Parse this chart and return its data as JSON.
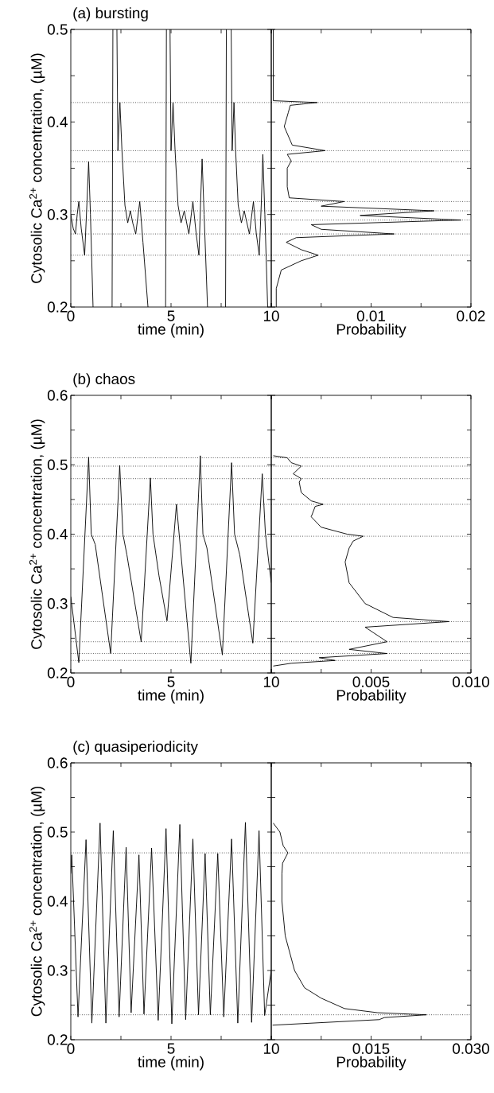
{
  "chart_data": [
    {
      "type": "line",
      "title": "(a) bursting",
      "xlabel": "time  (min)",
      "ylabel": "Cytosolic Ca$^{2+}$ concentration,  (µM)",
      "xlim": [
        0,
        10
      ],
      "ylim": [
        0.2,
        0.5
      ],
      "xticks": [
        0,
        {
          "value": 2.5,
          "label": null
        },
        5,
        {
          "value": 7.5,
          "label": null
        },
        10
      ],
      "yticks": [
        0.2,
        {
          "value": 0.25,
          "label": null
        },
        0.3,
        {
          "value": 0.35,
          "label": null
        },
        0.4,
        {
          "value": 0.45,
          "label": null
        },
        0.5
      ],
      "series": [
        {
          "color": "#000000",
          "x": [
            0,
            0.12,
            0.23,
            0.32,
            0.4,
            0.52,
            0.69,
            0.8,
            0.89,
            0.98,
            1.11,
            1.5,
            2.06,
            2.1,
            2.2,
            2.3,
            2.35,
            2.45,
            2.55,
            2.7,
            2.84,
            2.97,
            3.1,
            3.24,
            3.44,
            3.6,
            3.85,
            4.3,
            4.73,
            4.77,
            4.85,
            4.95,
            5.0,
            5.1,
            5.2,
            5.35,
            5.5,
            5.66,
            5.89,
            6.09,
            6.25,
            6.39,
            6.47,
            6.55,
            6.65,
            6.82,
            7.2,
            7.72,
            7.76,
            7.9,
            8.0,
            8.05,
            8.14,
            8.22,
            8.35,
            8.51,
            8.65,
            8.91,
            9.11,
            9.25,
            9.4,
            9.5,
            9.58,
            9.68,
            9.82
          ],
          "values": [
            0.3,
            0.285,
            0.279,
            0.3,
            0.314,
            0.285,
            0.256,
            0.31,
            0.357,
            0.3,
            0.2,
            null,
            0.2,
            0.5,
            null,
            0.5,
            0.369,
            0.421,
            0.37,
            0.31,
            0.291,
            0.304,
            0.29,
            0.279,
            0.314,
            0.27,
            0.2,
            null,
            0.2,
            0.5,
            null,
            0.5,
            0.369,
            0.421,
            0.37,
            0.31,
            0.291,
            0.304,
            0.279,
            0.314,
            0.28,
            0.256,
            0.31,
            0.36,
            0.3,
            0.2,
            null,
            0.2,
            0.5,
            null,
            0.5,
            0.369,
            0.421,
            0.37,
            0.31,
            0.291,
            0.304,
            0.279,
            0.314,
            0.28,
            0.256,
            0.31,
            0.365,
            0.3,
            0.2
          ]
        }
      ],
      "ref_lines": [
        {
          "axis": "y",
          "value": 0.421,
          "line_style": "dotted"
        },
        {
          "axis": "y",
          "value": 0.369,
          "line_style": "dotted"
        },
        {
          "axis": "y",
          "value": 0.357,
          "line_style": "dotted"
        },
        {
          "axis": "y",
          "value": 0.314,
          "line_style": "dotted"
        },
        {
          "axis": "y",
          "value": 0.304,
          "line_style": "dotted"
        },
        {
          "axis": "y",
          "value": 0.294,
          "line_style": "dotted"
        },
        {
          "axis": "y",
          "value": 0.279,
          "line_style": "dotted"
        },
        {
          "axis": "y",
          "value": 0.256,
          "line_style": "dotted"
        }
      ]
    },
    {
      "type": "line",
      "xlabel": "Probability",
      "xlim": [
        0,
        0.02
      ],
      "ylim": [
        0.2,
        0.5
      ],
      "tick_labels": "x",
      "xticks": [
        {
          "value": 0,
          "label": null
        },
        {
          "value": 0.005,
          "label": null
        },
        0.01,
        {
          "value": 0.015,
          "label": null
        },
        0.02
      ],
      "yticks": [
        0.2,
        0.25,
        0.3,
        0.35,
        0.4,
        0.45,
        0.5
      ],
      "series": [
        {
          "color": "#000000",
          "x": [
            0.0005,
            0.0005,
            0.001,
            0.003,
            0.0047,
            0.003,
            0.0015,
            0.0025,
            0.0123,
            0.005,
            0.004,
            0.019,
            0.0089,
            0.0163,
            0.005,
            0.0073,
            0.0018,
            0.0016,
            0.0016,
            0.002,
            0.0016,
            0.0054,
            0.0021,
            0.0013,
            0.0017,
            0.0019,
            0.0046,
            0.0002,
            0.0002
          ],
          "values": [
            0.2,
            0.22,
            0.24,
            0.25,
            0.256,
            0.262,
            0.27,
            0.275,
            0.279,
            0.284,
            0.289,
            0.294,
            0.299,
            0.304,
            0.309,
            0.314,
            0.318,
            0.33,
            0.35,
            0.358,
            0.365,
            0.369,
            0.375,
            0.395,
            0.41,
            0.418,
            0.421,
            0.423,
            0.5
          ]
        }
      ],
      "ref_lines": [
        {
          "axis": "y",
          "value": 0.421,
          "line_style": "dotted"
        },
        {
          "axis": "y",
          "value": 0.369,
          "line_style": "dotted"
        },
        {
          "axis": "y",
          "value": 0.357,
          "line_style": "dotted"
        },
        {
          "axis": "y",
          "value": 0.314,
          "line_style": "dotted"
        },
        {
          "axis": "y",
          "value": 0.304,
          "line_style": "dotted"
        },
        {
          "axis": "y",
          "value": 0.294,
          "line_style": "dotted"
        },
        {
          "axis": "y",
          "value": 0.279,
          "line_style": "dotted"
        },
        {
          "axis": "y",
          "value": 0.256,
          "line_style": "dotted"
        }
      ]
    },
    {
      "type": "line",
      "title": "(b) chaos",
      "xlabel": "time  (min)",
      "ylabel": "Cytosolic Ca$^{2+}$ concentration,  (µM)",
      "xlim": [
        0,
        10
      ],
      "ylim": [
        0.2,
        0.6
      ],
      "xticks": [
        0,
        {
          "value": 2.5,
          "label": null
        },
        5,
        {
          "value": 7.5,
          "label": null
        },
        10
      ],
      "yticks": [
        0.2,
        {
          "value": 0.25,
          "label": null
        },
        0.3,
        {
          "value": 0.35,
          "label": null
        },
        0.4,
        {
          "value": 0.45,
          "label": null
        },
        0.5,
        {
          "value": 0.55,
          "label": null
        },
        0.6
      ],
      "series": [
        {
          "color": "#000000",
          "x": [
            0,
            0.4,
            0.89,
            1.02,
            1.22,
            1.99,
            2.44,
            2.6,
            2.8,
            3.51,
            3.97,
            4.1,
            4.4,
            4.8,
            5.27,
            5.99,
            6.46,
            6.59,
            6.79,
            7.56,
            8.02,
            8.17,
            8.43,
            9.08,
            9.55,
            9.71,
            10
          ],
          "values": [
            0.31,
            0.215,
            0.511,
            0.4,
            0.385,
            0.228,
            0.499,
            0.4,
            0.37,
            0.245,
            0.481,
            0.4,
            0.34,
            0.275,
            0.443,
            0.214,
            0.513,
            0.4,
            0.38,
            0.226,
            0.503,
            0.4,
            0.37,
            0.243,
            0.487,
            0.4,
            0.33
          ]
        }
      ],
      "ref_lines": [
        {
          "axis": "y",
          "value": 0.51,
          "line_style": "dotted"
        },
        {
          "axis": "y",
          "value": 0.498,
          "line_style": "dotted"
        },
        {
          "axis": "y",
          "value": 0.48,
          "line_style": "dotted"
        },
        {
          "axis": "y",
          "value": 0.443,
          "line_style": "dotted"
        },
        {
          "axis": "y",
          "value": 0.397,
          "line_style": "dotted"
        },
        {
          "axis": "y",
          "value": 0.274,
          "line_style": "dotted"
        },
        {
          "axis": "y",
          "value": 0.245,
          "line_style": "dotted"
        },
        {
          "axis": "y",
          "value": 0.228,
          "line_style": "dotted"
        },
        {
          "axis": "y",
          "value": 0.218,
          "line_style": "dotted"
        }
      ]
    },
    {
      "type": "line",
      "xlabel": "Probability",
      "xlim": [
        0,
        0.01
      ],
      "ylim": [
        0.2,
        0.6
      ],
      "tick_labels": "x",
      "xticks": [
        {
          "value": 0,
          "label": null
        },
        {
          "value": 0.0025,
          "label": null
        },
        0.005,
        {
          "value": 0.0075,
          "label": null
        },
        {
          "value": 0.01,
          "label": "0.010"
        }
      ],
      "yticks": [
        0.2,
        0.25,
        0.3,
        0.35,
        0.4,
        0.45,
        0.5,
        0.55,
        0.6
      ],
      "series": [
        {
          "color": "#000000",
          "x": [
            0.0001,
            0.001,
            0.0032,
            0.0024,
            0.0058,
            0.0039,
            0.0058,
            0.0047,
            0.0089,
            0.0061,
            0.0047,
            0.0039,
            0.0037,
            0.0039,
            0.0041,
            0.0046,
            0.0038,
            0.0025,
            0.002,
            0.0022,
            0.0026,
            0.002,
            0.0015,
            0.0014,
            0.0015,
            0.0011,
            0.0015,
            0.001,
            0.0008,
            0.0001
          ],
          "values": [
            0.21,
            0.214,
            0.218,
            0.222,
            0.228,
            0.234,
            0.245,
            0.266,
            0.274,
            0.28,
            0.3,
            0.33,
            0.36,
            0.38,
            0.39,
            0.397,
            0.4,
            0.41,
            0.425,
            0.44,
            0.443,
            0.448,
            0.46,
            0.475,
            0.48,
            0.487,
            0.498,
            0.503,
            0.51,
            0.513
          ]
        }
      ],
      "ref_lines": [
        {
          "axis": "y",
          "value": 0.51,
          "line_style": "dotted"
        },
        {
          "axis": "y",
          "value": 0.498,
          "line_style": "dotted"
        },
        {
          "axis": "y",
          "value": 0.48,
          "line_style": "dotted"
        },
        {
          "axis": "y",
          "value": 0.443,
          "line_style": "dotted"
        },
        {
          "axis": "y",
          "value": 0.397,
          "line_style": "dotted"
        },
        {
          "axis": "y",
          "value": 0.274,
          "line_style": "dotted"
        },
        {
          "axis": "y",
          "value": 0.245,
          "line_style": "dotted"
        },
        {
          "axis": "y",
          "value": 0.228,
          "line_style": "dotted"
        },
        {
          "axis": "y",
          "value": 0.218,
          "line_style": "dotted"
        }
      ]
    },
    {
      "type": "line",
      "title": "(c) quasiperiodicity",
      "xlabel": "time  (min)",
      "ylabel": "Cytosolic Ca$^{2+}$ concentration,  (µM)",
      "xlim": [
        0,
        10
      ],
      "ylim": [
        0.2,
        0.6
      ],
      "xticks": [
        0,
        {
          "value": 2.5,
          "label": null
        },
        5,
        {
          "value": 7.5,
          "label": null
        },
        10
      ],
      "yticks": [
        0.2,
        {
          "value": 0.25,
          "label": null
        },
        0.3,
        {
          "value": 0.35,
          "label": null
        },
        0.4,
        {
          "value": 0.45,
          "label": null
        },
        0.5,
        {
          "value": 0.55,
          "label": null
        },
        0.6
      ],
      "series": [
        {
          "color": "#000000",
          "x": [
            0,
            0.05,
            0.36,
            0.76,
            1.05,
            1.46,
            1.75,
            2.12,
            2.41,
            2.76,
            3.01,
            3.4,
            3.65,
            4.03,
            4.36,
            4.75,
            5.04,
            5.44,
            5.73,
            6.09,
            6.37,
            6.7,
            6.96,
            7.33,
            7.63,
            8.02,
            8.33,
            8.71,
            9.02,
            9.39,
            9.67,
            10
          ],
          "values": [
            0.44,
            0.467,
            0.233,
            0.489,
            0.224,
            0.513,
            0.224,
            0.502,
            0.233,
            0.478,
            0.239,
            0.467,
            0.237,
            0.477,
            0.228,
            0.505,
            0.223,
            0.511,
            0.229,
            0.49,
            0.236,
            0.469,
            0.236,
            0.469,
            0.233,
            0.49,
            0.224,
            0.514,
            0.225,
            0.502,
            0.235,
            0.3
          ]
        }
      ],
      "ref_lines": [
        {
          "axis": "y",
          "value": 0.47,
          "line_style": "dotted"
        },
        {
          "axis": "y",
          "value": 0.236,
          "line_style": "dotted"
        }
      ]
    },
    {
      "type": "line",
      "xlabel": "Probability",
      "xlim": [
        0,
        0.03
      ],
      "ylim": [
        0.2,
        0.6
      ],
      "tick_labels": "x",
      "xticks": [
        {
          "value": 0,
          "label": null
        },
        {
          "value": 0.0075,
          "label": null
        },
        0.015,
        {
          "value": 0.0225,
          "label": null
        },
        {
          "value": 0.03,
          "label": "0.030"
        }
      ],
      "yticks": [
        0.2,
        0.25,
        0.3,
        0.35,
        0.4,
        0.45,
        0.5,
        0.55,
        0.6
      ],
      "series": [
        {
          "color": "#000000",
          "x": [
            0.0002,
            0.0162,
            0.017,
            0.0233,
            0.016,
            0.011,
            0.0075,
            0.005,
            0.0035,
            0.0021,
            0.0016,
            0.0016,
            0.0017,
            0.0025,
            0.0018,
            0.0013,
            0.0003
          ],
          "values": [
            0.221,
            0.229,
            0.232,
            0.236,
            0.239,
            0.245,
            0.26,
            0.275,
            0.3,
            0.35,
            0.4,
            0.44,
            0.455,
            0.47,
            0.48,
            0.5,
            0.513
          ]
        }
      ],
      "ref_lines": [
        {
          "axis": "y",
          "value": 0.47,
          "line_style": "dotted"
        },
        {
          "axis": "y",
          "value": 0.236,
          "line_style": "dotted"
        }
      ]
    }
  ]
}
